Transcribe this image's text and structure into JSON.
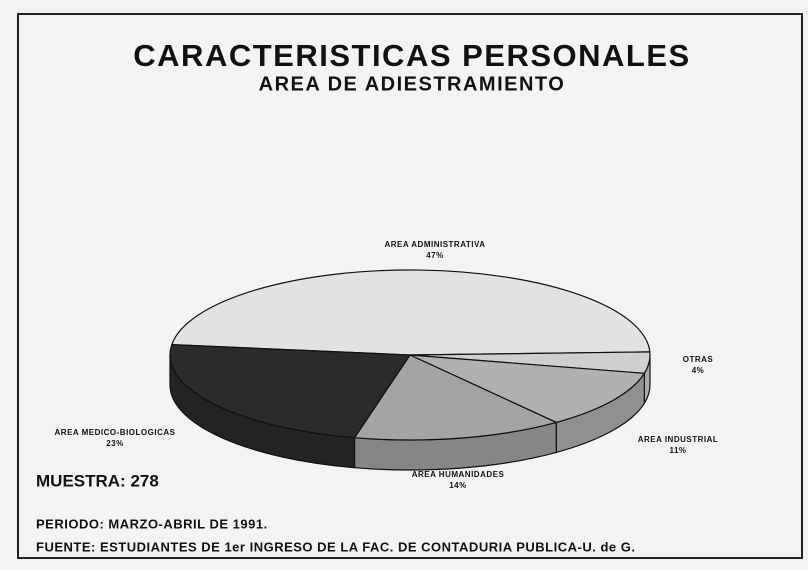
{
  "chart_data": {
    "type": "pie3d",
    "title": "CARACTERISTICAS PERSONALES",
    "subtitle": "AREA DE ADIESTRAMIENTO",
    "categories": [
      "AREA ADMINISTRATIVA",
      "OTRAS",
      "AREA INDUSTRIAL",
      "AREA HUMANIDADES",
      "AREA MEDICO-BIOLOGICAS"
    ],
    "values": [
      47,
      4,
      11,
      14,
      23
    ],
    "value_labels": [
      "47%",
      "4%",
      "11%",
      "14%",
      "23%"
    ],
    "colors": [
      "#e2e2e2",
      "#cfcfcf",
      "#b0b0b0",
      "#a4a4a4",
      "#2b2b2b"
    ],
    "sample": "MUESTRA: 278",
    "period": "PERIODO: MARZO-ABRIL DE 1991.",
    "source": "FUENTE: ESTUDIANTES DE 1er INGRESO DE LA FAC. DE CONTADURIA PUBLICA-U. de G."
  }
}
